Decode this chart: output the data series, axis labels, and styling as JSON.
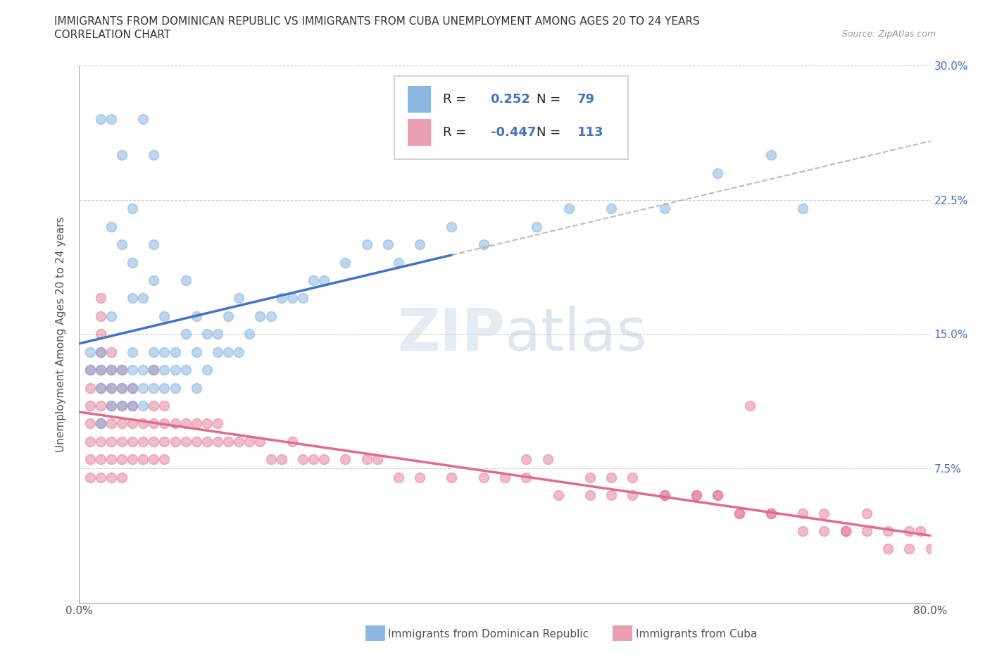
{
  "title_line1": "IMMIGRANTS FROM DOMINICAN REPUBLIC VS IMMIGRANTS FROM CUBA UNEMPLOYMENT AMONG AGES 20 TO 24 YEARS",
  "title_line2": "CORRELATION CHART",
  "source_text": "Source: ZipAtlas.com",
  "ylabel": "Unemployment Among Ages 20 to 24 years",
  "legend_labels": [
    "Immigrants from Dominican Republic",
    "Immigrants from Cuba"
  ],
  "r_dr": 0.252,
  "n_dr": 79,
  "r_cuba": -0.447,
  "n_cuba": 113,
  "color_dr": "#6fa8dc",
  "color_cuba": "#e06c8a",
  "trendline_dr": "#4472c4",
  "trendline_cuba": "#e06c8a",
  "trendline_dashed": "#aaaaaa",
  "xmin": 0.0,
  "xmax": 0.8,
  "ymin": 0.0,
  "ymax": 0.3,
  "ytick_labels": [
    "",
    "7.5%",
    "15.0%",
    "22.5%",
    "30.0%"
  ],
  "ytick_values": [
    0.0,
    0.075,
    0.15,
    0.225,
    0.3
  ],
  "background_color": "#ffffff",
  "grid_color": "#cccccc",
  "dr_x": [
    0.01,
    0.01,
    0.02,
    0.02,
    0.02,
    0.02,
    0.02,
    0.03,
    0.03,
    0.03,
    0.03,
    0.03,
    0.03,
    0.04,
    0.04,
    0.04,
    0.04,
    0.04,
    0.05,
    0.05,
    0.05,
    0.05,
    0.05,
    0.05,
    0.05,
    0.06,
    0.06,
    0.06,
    0.06,
    0.06,
    0.07,
    0.07,
    0.07,
    0.07,
    0.07,
    0.07,
    0.08,
    0.08,
    0.08,
    0.08,
    0.09,
    0.09,
    0.09,
    0.1,
    0.1,
    0.1,
    0.11,
    0.11,
    0.11,
    0.12,
    0.12,
    0.13,
    0.13,
    0.14,
    0.14,
    0.15,
    0.15,
    0.16,
    0.17,
    0.18,
    0.19,
    0.2,
    0.21,
    0.22,
    0.23,
    0.25,
    0.27,
    0.29,
    0.3,
    0.32,
    0.35,
    0.38,
    0.43,
    0.46,
    0.5,
    0.55,
    0.6,
    0.65,
    0.68
  ],
  "dr_y": [
    0.13,
    0.14,
    0.1,
    0.12,
    0.13,
    0.14,
    0.27,
    0.11,
    0.12,
    0.13,
    0.16,
    0.21,
    0.27,
    0.11,
    0.12,
    0.13,
    0.2,
    0.25,
    0.11,
    0.12,
    0.13,
    0.14,
    0.17,
    0.19,
    0.22,
    0.11,
    0.12,
    0.13,
    0.17,
    0.27,
    0.12,
    0.13,
    0.14,
    0.18,
    0.2,
    0.25,
    0.12,
    0.13,
    0.14,
    0.16,
    0.12,
    0.13,
    0.14,
    0.13,
    0.15,
    0.18,
    0.12,
    0.14,
    0.16,
    0.13,
    0.15,
    0.14,
    0.15,
    0.14,
    0.16,
    0.14,
    0.17,
    0.15,
    0.16,
    0.16,
    0.17,
    0.17,
    0.17,
    0.18,
    0.18,
    0.19,
    0.2,
    0.2,
    0.19,
    0.2,
    0.21,
    0.2,
    0.21,
    0.22,
    0.22,
    0.22,
    0.24,
    0.25,
    0.22
  ],
  "cuba_x": [
    0.01,
    0.01,
    0.01,
    0.01,
    0.01,
    0.01,
    0.01,
    0.02,
    0.02,
    0.02,
    0.02,
    0.02,
    0.02,
    0.02,
    0.02,
    0.02,
    0.02,
    0.02,
    0.03,
    0.03,
    0.03,
    0.03,
    0.03,
    0.03,
    0.03,
    0.03,
    0.04,
    0.04,
    0.04,
    0.04,
    0.04,
    0.04,
    0.04,
    0.05,
    0.05,
    0.05,
    0.05,
    0.05,
    0.06,
    0.06,
    0.06,
    0.07,
    0.07,
    0.07,
    0.07,
    0.07,
    0.08,
    0.08,
    0.08,
    0.08,
    0.09,
    0.09,
    0.1,
    0.1,
    0.11,
    0.11,
    0.12,
    0.12,
    0.13,
    0.13,
    0.14,
    0.15,
    0.16,
    0.17,
    0.18,
    0.19,
    0.2,
    0.21,
    0.22,
    0.23,
    0.25,
    0.27,
    0.28,
    0.3,
    0.32,
    0.35,
    0.38,
    0.4,
    0.42,
    0.45,
    0.48,
    0.5,
    0.52,
    0.55,
    0.58,
    0.6,
    0.62,
    0.63,
    0.65,
    0.68,
    0.7,
    0.72,
    0.74,
    0.76,
    0.78,
    0.79,
    0.8,
    0.42,
    0.44,
    0.48,
    0.52,
    0.55,
    0.58,
    0.6,
    0.62,
    0.65,
    0.68,
    0.7,
    0.72,
    0.74,
    0.76,
    0.78,
    0.5
  ],
  "cuba_y": [
    0.07,
    0.08,
    0.09,
    0.1,
    0.11,
    0.12,
    0.13,
    0.07,
    0.08,
    0.09,
    0.1,
    0.11,
    0.12,
    0.13,
    0.14,
    0.15,
    0.16,
    0.17,
    0.07,
    0.08,
    0.09,
    0.1,
    0.11,
    0.12,
    0.13,
    0.14,
    0.07,
    0.08,
    0.09,
    0.1,
    0.11,
    0.12,
    0.13,
    0.08,
    0.09,
    0.1,
    0.11,
    0.12,
    0.08,
    0.09,
    0.1,
    0.08,
    0.09,
    0.1,
    0.11,
    0.13,
    0.08,
    0.09,
    0.1,
    0.11,
    0.09,
    0.1,
    0.09,
    0.1,
    0.09,
    0.1,
    0.09,
    0.1,
    0.09,
    0.1,
    0.09,
    0.09,
    0.09,
    0.09,
    0.08,
    0.08,
    0.09,
    0.08,
    0.08,
    0.08,
    0.08,
    0.08,
    0.08,
    0.07,
    0.07,
    0.07,
    0.07,
    0.07,
    0.07,
    0.06,
    0.06,
    0.07,
    0.06,
    0.06,
    0.06,
    0.06,
    0.05,
    0.11,
    0.05,
    0.05,
    0.05,
    0.04,
    0.05,
    0.04,
    0.04,
    0.04,
    0.03,
    0.08,
    0.08,
    0.07,
    0.07,
    0.06,
    0.06,
    0.06,
    0.05,
    0.05,
    0.04,
    0.04,
    0.04,
    0.04,
    0.03,
    0.03,
    0.06
  ]
}
